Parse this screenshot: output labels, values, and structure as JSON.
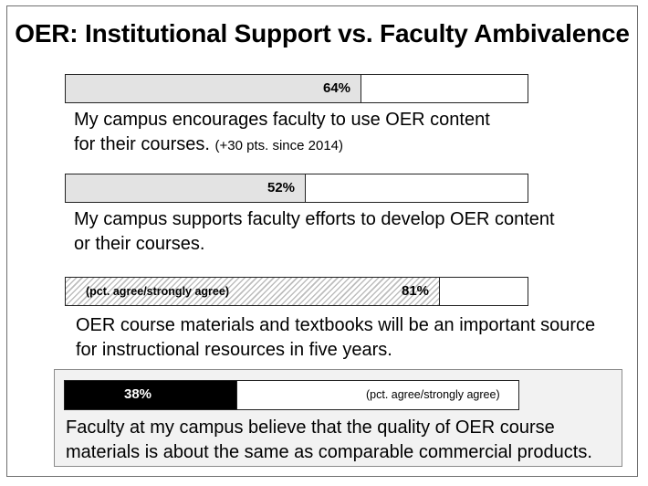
{
  "chart_data": {
    "type": "bar",
    "title": "OER: Institutional Support vs. Faculty Ambivalence",
    "xlim": [
      0,
      100
    ],
    "unit": "%",
    "items": [
      {
        "value": 64,
        "value_label": "64%",
        "fill": "gray",
        "label_lines": [
          "My campus encourages faculty to use OER content",
          "for their courses."
        ],
        "note": "(+30 pts. since 2014)"
      },
      {
        "value": 52,
        "value_label": "52%",
        "fill": "gray",
        "label_lines": [
          "My campus supports faculty efforts to develop OER content",
          "or their courses."
        ],
        "note": ""
      },
      {
        "value": 81,
        "value_label": "81%",
        "fill": "hatch",
        "bar_note": "(pct. agree/strongly agree)",
        "label_lines": [
          "OER course materials and textbooks will be an important source",
          "for instructional resources in five years."
        ],
        "note": ""
      },
      {
        "value": 38,
        "value_label": "38%",
        "fill": "black",
        "bar_note": "(pct. agree/strongly agree)",
        "label_lines": [
          "Faculty at my campus believe that the quality of OER course",
          "materials is about the same as comparable commercial products."
        ],
        "note": ""
      }
    ]
  },
  "colors": {
    "gray_fill": "#e3e3e3",
    "hatch_line": "#bdbdbd",
    "black_fill": "#000000",
    "highlight_panel": "#f2f2f2"
  }
}
